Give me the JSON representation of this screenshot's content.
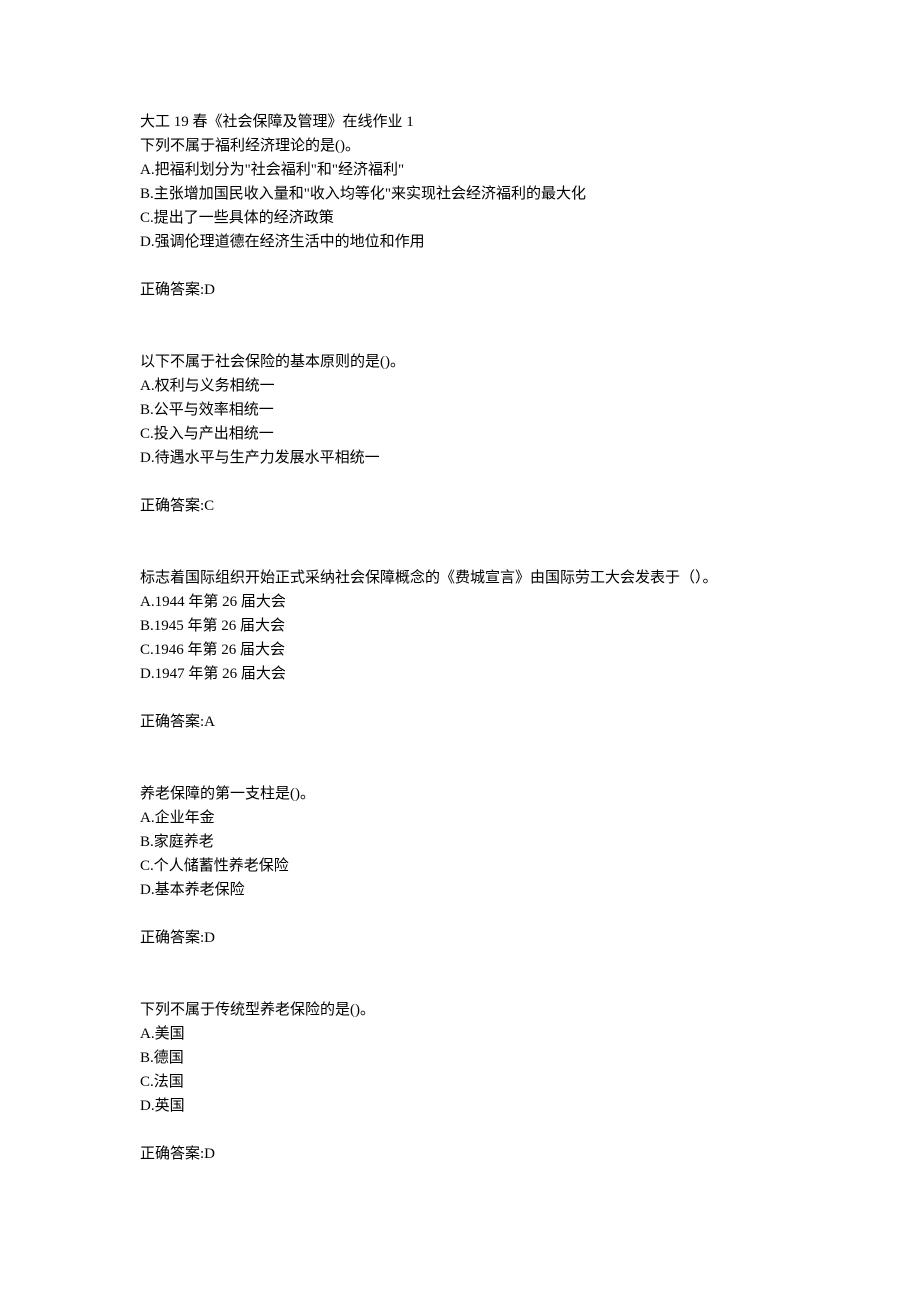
{
  "title": "大工 19 春《社会保障及管理》在线作业 1",
  "questions": [
    {
      "text": "下列不属于福利经济理论的是()。",
      "options": [
        "A.把福利划分为\"社会福利\"和\"经济福利\"",
        "B.主张增加国民收入量和\"收入均等化\"来实现社会经济福利的最大化",
        "C.提出了一些具体的经济政策",
        "D.强调伦理道德在经济生活中的地位和作用"
      ],
      "answer": "正确答案:D"
    },
    {
      "text": "以下不属于社会保险的基本原则的是()。",
      "options": [
        "A.权利与义务相统一",
        "B.公平与效率相统一",
        "C.投入与产出相统一",
        "D.待遇水平与生产力发展水平相统一"
      ],
      "answer": "正确答案:C"
    },
    {
      "text": "标志着国际组织开始正式采纳社会保障概念的《费城宣言》由国际劳工大会发表于（）。",
      "options": [
        "A.1944 年第 26 届大会",
        "B.1945 年第 26 届大会",
        "C.1946 年第 26 届大会",
        "D.1947 年第 26 届大会"
      ],
      "answer": "正确答案:A"
    },
    {
      "text": "养老保障的第一支柱是()。",
      "options": [
        "A.企业年金",
        "B.家庭养老",
        "C.个人储蓄性养老保险",
        "D.基本养老保险"
      ],
      "answer": "正确答案:D"
    },
    {
      "text": "下列不属于传统型养老保险的是()。",
      "options": [
        "A.美国",
        "B.德国",
        "C.法国",
        "D.英国"
      ],
      "answer": "正确答案:D"
    }
  ]
}
